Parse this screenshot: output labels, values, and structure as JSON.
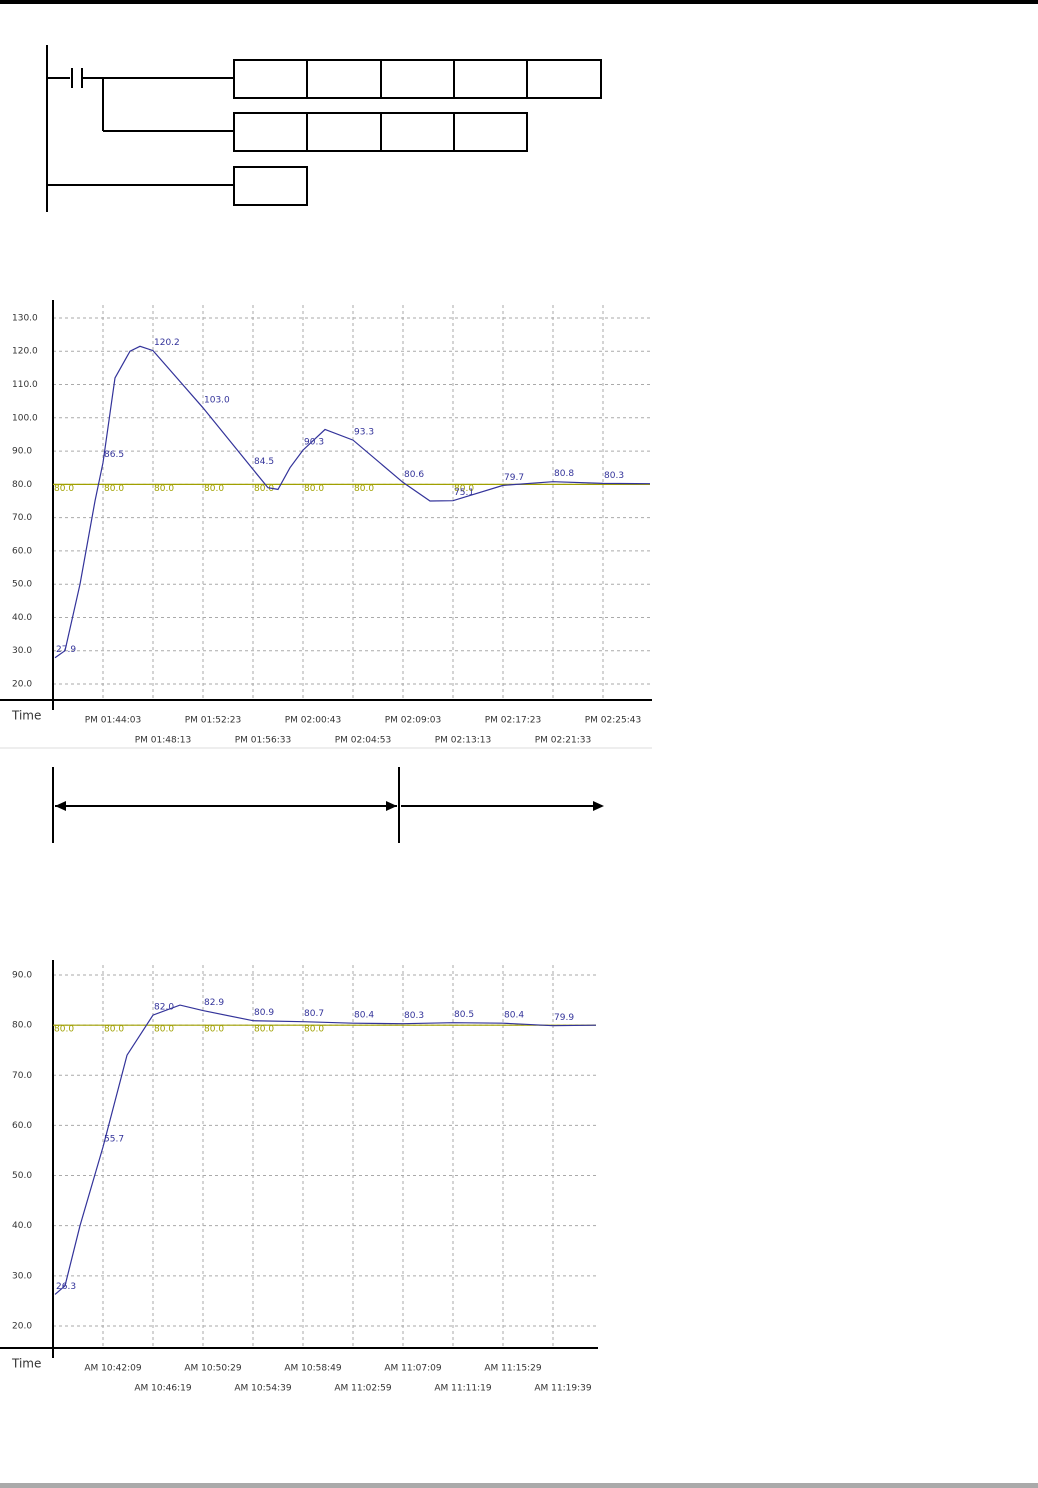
{
  "chart_data": [
    {
      "type": "line",
      "x_label": "Time",
      "xlim": [
        "PM 01:39:53",
        "PM 02:29:38"
      ],
      "xticks": [
        "PM 01:44:03",
        "PM 01:48:13",
        "PM 01:52:23",
        "PM 01:56:33",
        "PM 02:00:43",
        "PM 02:04:53",
        "PM 02:09:03",
        "PM 02:13:13",
        "PM 02:17:23",
        "PM 02:21:33",
        "PM 02:25:43"
      ],
      "ylim": [
        15.2,
        135.4
      ],
      "yticks": [
        {
          "value": 20,
          "label": "20.0"
        },
        {
          "value": 30,
          "label": "30.0"
        },
        {
          "value": 40,
          "label": "40.0"
        },
        {
          "value": 50,
          "label": "50.0"
        },
        {
          "value": 60,
          "label": "60.0"
        },
        {
          "value": 70,
          "label": "70.0"
        },
        {
          "value": 80,
          "label": "80.0"
        },
        {
          "value": 90,
          "label": "90.0"
        },
        {
          "value": 100,
          "label": "100.0"
        },
        {
          "value": 110,
          "label": "110.0"
        },
        {
          "value": 120,
          "label": "120.0"
        },
        {
          "value": 130,
          "label": "130.0"
        }
      ],
      "grid": true,
      "series": [
        {
          "color": "#a0a000",
          "x": [
            "PM 01:39:53",
            "PM 01:44:03",
            "PM 01:48:13",
            "PM 01:52:23",
            "PM 01:56:33",
            "PM 02:00:43",
            "PM 02:04:53",
            "PM 02:09:03",
            "PM 02:13:13",
            "PM 02:17:23",
            "PM 02:21:33",
            "PM 02:25:43",
            "PM 02:29:38"
          ],
          "values": [
            80,
            80,
            80,
            80,
            80,
            80,
            80,
            80,
            80,
            80,
            80,
            80,
            80
          ],
          "value_labels": [
            "80.0",
            "80.0",
            "80.0",
            "80.0",
            "80.0",
            "80.0",
            "80.0",
            null,
            "80.0",
            null,
            null,
            null,
            null
          ]
        },
        {
          "color": "#33339a",
          "x": [
            "PM 01:40:03",
            "PM 01:40:53",
            "PM 01:42:08",
            "PM 01:43:23",
            "PM 01:44:03",
            "PM 01:45:03",
            "PM 01:46:18",
            "PM 01:47:08",
            "PM 01:48:13",
            "PM 01:52:23",
            "PM 01:56:33",
            "PM 01:57:48",
            "PM 01:58:38",
            "PM 01:59:38",
            "PM 02:00:43",
            "PM 02:02:33",
            "PM 02:04:53",
            "PM 02:09:03",
            "PM 02:11:18",
            "PM 02:13:13",
            "PM 02:17:23",
            "PM 02:21:33",
            "PM 02:25:43",
            "PM 02:29:38"
          ],
          "values": [
            27.9,
            30,
            50,
            75,
            86.5,
            112,
            120,
            121.5,
            120.2,
            103.0,
            84.5,
            79,
            78.5,
            85,
            90.3,
            96.5,
            93.3,
            80.6,
            75,
            75.1,
            79.7,
            80.8,
            80.3,
            80.2
          ],
          "value_labels": [
            "27.9",
            null,
            null,
            null,
            "86.5",
            null,
            null,
            null,
            "120.2",
            "103.0",
            "84.5",
            null,
            null,
            null,
            "90.3",
            null,
            "93.3",
            "80.6",
            null,
            "75.1",
            "79.7",
            "80.8",
            "80.3",
            null
          ]
        }
      ]
    },
    {
      "type": "line",
      "x_label": "Time",
      "xlim": [
        "AM 10:37:59",
        "AM 11:23:14"
      ],
      "xticks": [
        "AM 10:42:09",
        "AM 10:46:19",
        "AM 10:50:29",
        "AM 10:54:39",
        "AM 10:58:49",
        "AM 11:02:59",
        "AM 11:07:09",
        "AM 11:11:19",
        "AM 11:15:29",
        "AM 11:19:39"
      ],
      "ylim": [
        15.6,
        93.0
      ],
      "yticks": [
        {
          "value": 20,
          "label": "20.0"
        },
        {
          "value": 30,
          "label": "30.0"
        },
        {
          "value": 40,
          "label": "40.0"
        },
        {
          "value": 50,
          "label": "50.0"
        },
        {
          "value": 60,
          "label": "60.0"
        },
        {
          "value": 70,
          "label": "70.0"
        },
        {
          "value": 80,
          "label": "80.0"
        },
        {
          "value": 90,
          "label": "90.0"
        }
      ],
      "grid": true,
      "series": [
        {
          "color": "#a0a000",
          "x": [
            "AM 10:37:59",
            "AM 10:42:09",
            "AM 10:46:19",
            "AM 10:50:29",
            "AM 10:54:39",
            "AM 10:58:49",
            "AM 11:23:14"
          ],
          "values": [
            80,
            80,
            80,
            80,
            80,
            80,
            80
          ],
          "value_labels": [
            "80.0",
            "80.0",
            "80.0",
            "80.0",
            "80.0",
            "80.0",
            null
          ]
        },
        {
          "color": "#33339a",
          "x": [
            "AM 10:38:09",
            "AM 10:38:59",
            "AM 10:40:14",
            "AM 10:42:09",
            "AM 10:44:09",
            "AM 10:46:19",
            "AM 10:48:34",
            "AM 10:50:29",
            "AM 10:54:39",
            "AM 10:58:49",
            "AM 11:02:59",
            "AM 11:07:09",
            "AM 11:11:19",
            "AM 11:15:29",
            "AM 11:19:39",
            "AM 11:23:14"
          ],
          "values": [
            26.3,
            28,
            40,
            55.7,
            74,
            82.0,
            84,
            82.9,
            80.9,
            80.7,
            80.4,
            80.3,
            80.5,
            80.4,
            79.9,
            80.0
          ],
          "value_labels": [
            "26.3",
            null,
            null,
            "55.7",
            null,
            "82.0",
            null,
            "82.9",
            "80.9",
            "80.7",
            "80.4",
            "80.3",
            "80.5",
            "80.4",
            "79.9",
            null
          ]
        }
      ]
    }
  ]
}
